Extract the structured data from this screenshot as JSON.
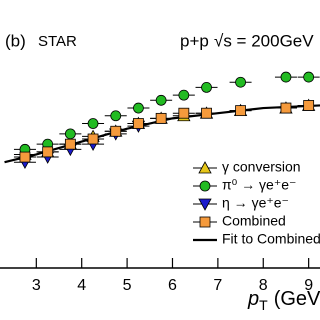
{
  "chart_data": {
    "type": "scatter",
    "panel_label": "(b)",
    "experiment": "STAR",
    "system": "p+p",
    "energy": "√s = 200GeV",
    "x_label": {
      "symbol": "p",
      "subscript": "T",
      "unit": "(GeV/c)"
    },
    "xlim": [
      2.2,
      9.25
    ],
    "xticks": [
      3,
      4,
      5,
      6,
      7,
      8,
      9
    ],
    "ylim": [
      0,
      1
    ],
    "x": [
      2.75,
      3.25,
      3.75,
      4.25,
      4.75,
      5.25,
      5.75,
      6.25,
      6.75,
      7.5,
      8.5,
      9.0
    ],
    "series": [
      {
        "name": "γ conversion",
        "color": "#e6c619",
        "marker": "triangle-up",
        "values": [
          0.44,
          0.45,
          0.48,
          0.51,
          0.53,
          0.56,
          0.58,
          0.59,
          0.6,
          0.61,
          0.62,
          0.63
        ]
      },
      {
        "name": "π⁰ → γe⁺e⁻",
        "color": "#22bb22",
        "marker": "circle",
        "values": [
          0.46,
          0.48,
          0.52,
          0.56,
          0.59,
          0.62,
          0.65,
          0.67,
          0.7,
          0.72,
          0.74,
          0.74
        ]
      },
      {
        "name": "η → γe⁺e⁻",
        "color": "#1a1acc",
        "marker": "triangle-down",
        "values": [
          0.41,
          0.43,
          0.46,
          0.48,
          0.52,
          0.55,
          null,
          null,
          null,
          null,
          null,
          null
        ]
      },
      {
        "name": "Combined",
        "color": "#f59a3c",
        "marker": "square",
        "values": [
          0.43,
          0.45,
          0.48,
          0.5,
          0.53,
          0.56,
          0.58,
          0.6,
          0.6,
          0.61,
          0.62,
          0.63
        ]
      }
    ],
    "fit": {
      "name": "Fit to Combined",
      "color": "#000000",
      "x": [
        2.3,
        3,
        4,
        5,
        6,
        7,
        8,
        9.25
      ],
      "values": [
        0.41,
        0.44,
        0.49,
        0.54,
        0.58,
        0.6,
        0.62,
        0.63
      ]
    }
  }
}
